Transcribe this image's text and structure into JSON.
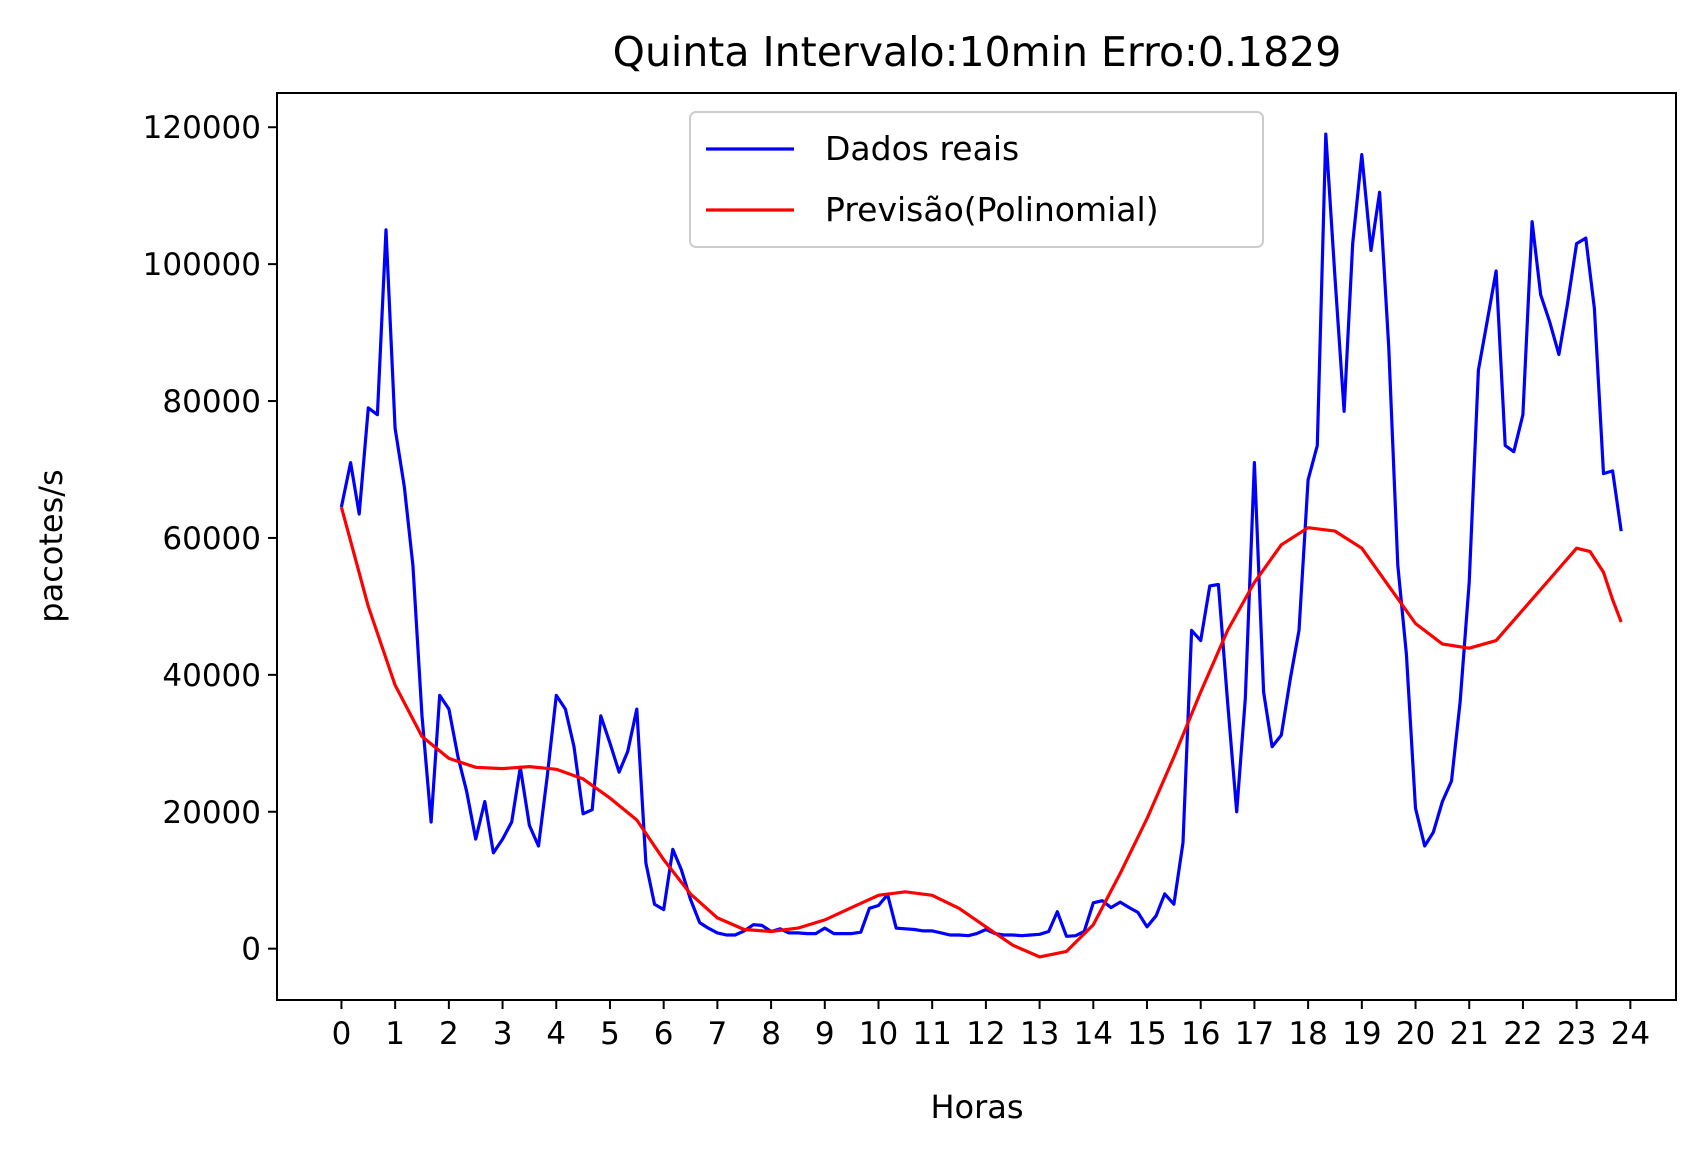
{
  "chart_data": {
    "type": "line",
    "title": "Quinta Intervalo:10min Erro:0.1829",
    "xlabel": "Horas",
    "ylabel": "pacotes/s",
    "xlim": [
      -1.2,
      24.85
    ],
    "ylim": [
      -7500,
      125000
    ],
    "x_ticks": [
      0,
      1,
      2,
      3,
      4,
      5,
      6,
      7,
      8,
      9,
      10,
      11,
      12,
      13,
      14,
      15,
      16,
      17,
      18,
      19,
      20,
      21,
      22,
      23,
      24
    ],
    "x_tick_labels": [
      "0",
      "1",
      "2",
      "3",
      "4",
      "5",
      "6",
      "7",
      "8",
      "9",
      "10",
      "11",
      "12",
      "13",
      "14",
      "15",
      "16",
      "17",
      "18",
      "19",
      "20",
      "21",
      "22",
      "23",
      "24"
    ],
    "y_ticks": [
      0,
      20000,
      40000,
      60000,
      80000,
      100000,
      120000
    ],
    "y_tick_labels": [
      "0",
      "20000",
      "40000",
      "60000",
      "80000",
      "100000",
      "120000"
    ],
    "grid": false,
    "legend_position": "top-center",
    "series": [
      {
        "name": "Dados reais",
        "color": "#0000ff",
        "x": [
          0.0,
          0.17,
          0.33,
          0.5,
          0.67,
          0.83,
          1.0,
          1.17,
          1.33,
          1.5,
          1.67,
          1.83,
          2.0,
          2.17,
          2.33,
          2.5,
          2.67,
          2.83,
          3.0,
          3.17,
          3.33,
          3.5,
          3.67,
          3.83,
          4.0,
          4.17,
          4.33,
          4.5,
          4.67,
          4.83,
          5.0,
          5.17,
          5.33,
          5.5,
          5.67,
          5.83,
          6.0,
          6.17,
          6.33,
          6.5,
          6.67,
          6.83,
          7.0,
          7.17,
          7.33,
          7.5,
          7.67,
          7.83,
          8.0,
          8.17,
          8.33,
          8.5,
          8.67,
          8.83,
          9.0,
          9.17,
          9.33,
          9.5,
          9.67,
          9.83,
          10.0,
          10.17,
          10.33,
          10.5,
          10.67,
          10.83,
          11.0,
          11.17,
          11.33,
          11.5,
          11.67,
          11.83,
          12.0,
          12.17,
          12.33,
          12.5,
          12.67,
          12.83,
          13.0,
          13.17,
          13.33,
          13.5,
          13.67,
          13.83,
          14.0,
          14.17,
          14.33,
          14.5,
          14.67,
          14.83,
          15.0,
          15.17,
          15.33,
          15.5,
          15.67,
          15.83,
          16.0,
          16.17,
          16.33,
          16.5,
          16.67,
          16.83,
          17.0,
          17.17,
          17.33,
          17.5,
          17.67,
          17.83,
          18.0,
          18.17,
          18.33,
          18.5,
          18.67,
          18.83,
          19.0,
          19.17,
          19.33,
          19.5,
          19.67,
          19.83,
          20.0,
          20.17,
          20.33,
          20.5,
          20.67,
          20.83,
          21.0,
          21.17,
          21.33,
          21.5,
          21.67,
          21.83,
          22.0,
          22.17,
          22.33,
          22.5,
          22.67,
          22.83,
          23.0,
          23.17,
          23.33,
          23.5,
          23.67,
          23.83
        ],
        "y": [
          64500,
          71000,
          63500,
          79000,
          78000,
          105000,
          76000,
          67500,
          56000,
          34000,
          18500,
          37000,
          35000,
          28000,
          23000,
          16000,
          21500,
          14000,
          16000,
          18500,
          26500,
          18000,
          15000,
          25000,
          37000,
          35000,
          29500,
          19700,
          20300,
          34000,
          30000,
          25800,
          28800,
          35000,
          12500,
          6500,
          5700,
          14500,
          11500,
          7200,
          3800,
          3000,
          2300,
          2000,
          2000,
          2600,
          3500,
          3400,
          2500,
          2900,
          2300,
          2300,
          2200,
          2200,
          3000,
          2200,
          2200,
          2200,
          2400,
          5900,
          6300,
          7900,
          3000,
          2900,
          2800,
          2600,
          2600,
          2300,
          2000,
          2000,
          1900,
          2200,
          2800,
          2200,
          2000,
          2000,
          1900,
          2000,
          2100,
          2500,
          5400,
          1800,
          1900,
          2500,
          6700,
          7000,
          6000,
          6800,
          6000,
          5300,
          3200,
          4800,
          8000,
          6500,
          15500,
          46500,
          45000,
          53000,
          53200,
          36000,
          20000,
          36500,
          71000,
          37500,
          29500,
          31200,
          39500,
          46500,
          68500,
          73500,
          119000,
          98000,
          78500,
          103000,
          116000,
          102000,
          110500,
          88000,
          56000,
          43000,
          20500,
          15000,
          17000,
          21500,
          24500,
          36000,
          53500,
          84500,
          91500,
          99000,
          73500,
          72600,
          78000,
          106200,
          95500,
          91500,
          86800,
          94200,
          103000,
          103800,
          93500,
          69400,
          69800,
          61000
        ]
      },
      {
        "name": "Previsão(Polinomial)",
        "color": "#ff0000",
        "x": [
          0,
          0.5,
          1,
          1.5,
          2,
          2.5,
          3,
          3.5,
          4,
          4.5,
          5,
          5.5,
          6,
          6.5,
          7,
          7.5,
          8,
          8.5,
          9,
          9.5,
          10,
          10.5,
          11,
          11.5,
          12,
          12.5,
          13,
          13.5,
          14,
          14.5,
          15,
          15.5,
          16,
          16.5,
          17,
          17.5,
          18,
          18.5,
          19,
          19.5,
          20,
          20.5,
          21,
          21.5,
          22,
          22.5,
          23,
          23.25,
          23.5,
          23.67,
          23.83
        ],
        "y": [
          64500,
          50000,
          38500,
          31000,
          27800,
          26500,
          26300,
          26600,
          26200,
          24800,
          22000,
          18800,
          13000,
          8000,
          4500,
          2800,
          2500,
          3000,
          4200,
          6000,
          7800,
          8300,
          7800,
          5900,
          3200,
          500,
          -1200,
          -400,
          3500,
          11000,
          19000,
          28000,
          37500,
          46500,
          53500,
          59000,
          61500,
          61000,
          58500,
          53000,
          47500,
          44500,
          43900,
          45000,
          49500,
          54000,
          58500,
          58000,
          55000,
          51000,
          47700
        ]
      }
    ]
  }
}
